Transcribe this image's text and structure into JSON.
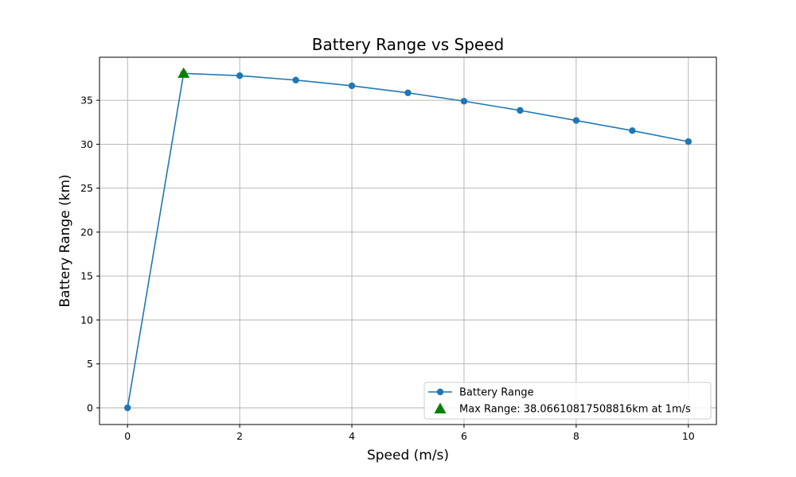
{
  "chart_data": {
    "type": "line",
    "title": "Battery Range vs Speed",
    "xlabel": "Speed (m/s)",
    "ylabel": "Battery Range (km)",
    "xlim": [
      -0.5,
      10.5
    ],
    "ylim": [
      -1.9,
      39.9
    ],
    "x_ticks": [
      0,
      2,
      4,
      6,
      8,
      10
    ],
    "y_ticks": [
      0,
      5,
      10,
      15,
      20,
      25,
      30,
      35
    ],
    "grid": true,
    "legend_position": "lower-right",
    "series": [
      {
        "name": "Battery Range",
        "color": "#1f77b4",
        "marker": "circle",
        "x": [
          0,
          1,
          2,
          3,
          4,
          5,
          6,
          7,
          8,
          9,
          10
        ],
        "y": [
          0,
          38.066,
          37.8,
          37.3,
          36.65,
          35.85,
          34.9,
          33.85,
          32.7,
          31.55,
          30.3
        ]
      }
    ],
    "annotation": {
      "name": "Max Range: 38.06610817508816km at 1m/s",
      "color": "#008000",
      "marker": "triangle",
      "x": 1,
      "y": 38.066
    }
  }
}
